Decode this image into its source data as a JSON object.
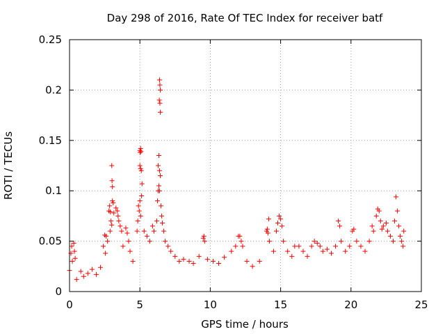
{
  "chart_data": {
    "type": "scatter",
    "title": "Day 298 of 2016, Rate Of TEC Index for receiver batf",
    "xlabel": "GPS time / hours",
    "ylabel": "ROTI / TECUs",
    "xlim": [
      0,
      25
    ],
    "ylim": [
      0,
      0.25
    ],
    "x_ticks": [
      0,
      5,
      10,
      15,
      20,
      25
    ],
    "x_tick_labels": [
      "0",
      "5",
      "10",
      "15",
      "20",
      "25"
    ],
    "y_ticks": [
      0,
      0.05,
      0.1,
      0.15,
      0.2,
      0.25
    ],
    "y_tick_labels": [
      "0",
      "0.05",
      "0.1",
      "0.15",
      "0.2",
      "0.25"
    ],
    "grid": true,
    "marker": "+",
    "color": "#ff0000",
    "series": [
      {
        "name": "ROTI",
        "points": [
          [
            0.0,
            0.021
          ],
          [
            0.1,
            0.038
          ],
          [
            0.15,
            0.045
          ],
          [
            0.2,
            0.03
          ],
          [
            0.3,
            0.048
          ],
          [
            0.35,
            0.04
          ],
          [
            0.4,
            0.033
          ],
          [
            0.5,
            0.012
          ],
          [
            0.8,
            0.02
          ],
          [
            1.0,
            0.015
          ],
          [
            1.3,
            0.018
          ],
          [
            1.6,
            0.022
          ],
          [
            1.9,
            0.017
          ],
          [
            2.2,
            0.024
          ],
          [
            2.5,
            0.056
          ],
          [
            2.6,
            0.055
          ],
          [
            2.7,
            0.05
          ],
          [
            2.4,
            0.045
          ],
          [
            2.55,
            0.038
          ],
          [
            2.8,
            0.08
          ],
          [
            2.85,
            0.085
          ],
          [
            2.9,
            0.079
          ],
          [
            2.95,
            0.07
          ],
          [
            3.0,
            0.066
          ],
          [
            2.88,
            0.06
          ],
          [
            3.0,
            0.125
          ],
          [
            3.02,
            0.11
          ],
          [
            3.05,
            0.104
          ],
          [
            3.05,
            0.09
          ],
          [
            3.1,
            0.088
          ],
          [
            3.15,
            0.078
          ],
          [
            3.3,
            0.083
          ],
          [
            3.4,
            0.08
          ],
          [
            3.45,
            0.075
          ],
          [
            3.5,
            0.07
          ],
          [
            3.6,
            0.065
          ],
          [
            3.7,
            0.06
          ],
          [
            3.8,
            0.045
          ],
          [
            4.0,
            0.063
          ],
          [
            4.1,
            0.058
          ],
          [
            4.2,
            0.05
          ],
          [
            4.3,
            0.04
          ],
          [
            4.5,
            0.03
          ],
          [
            4.8,
            0.06
          ],
          [
            4.85,
            0.07
          ],
          [
            4.9,
            0.085
          ],
          [
            4.95,
            0.08
          ],
          [
            5.0,
            0.09
          ],
          [
            5.05,
            0.075
          ],
          [
            5.0,
            0.14
          ],
          [
            5.02,
            0.138
          ],
          [
            5.05,
            0.142
          ],
          [
            5.08,
            0.139
          ],
          [
            5.0,
            0.125
          ],
          [
            5.05,
            0.122
          ],
          [
            5.1,
            0.12
          ],
          [
            5.15,
            0.107
          ],
          [
            5.12,
            0.095
          ],
          [
            5.3,
            0.06
          ],
          [
            5.5,
            0.055
          ],
          [
            5.7,
            0.05
          ],
          [
            5.9,
            0.065
          ],
          [
            6.0,
            0.06
          ],
          [
            6.2,
            0.07
          ],
          [
            6.25,
            0.09
          ],
          [
            6.3,
            0.1
          ],
          [
            6.35,
            0.105
          ],
          [
            6.4,
            0.1
          ],
          [
            6.3,
            0.125
          ],
          [
            6.35,
            0.135
          ],
          [
            6.4,
            0.12
          ],
          [
            6.45,
            0.115
          ],
          [
            6.4,
            0.21
          ],
          [
            6.42,
            0.205
          ],
          [
            6.45,
            0.2
          ],
          [
            6.38,
            0.19
          ],
          [
            6.42,
            0.187
          ],
          [
            6.45,
            0.178
          ],
          [
            6.5,
            0.085
          ],
          [
            6.55,
            0.075
          ],
          [
            6.6,
            0.068
          ],
          [
            6.7,
            0.06
          ],
          [
            6.8,
            0.05
          ],
          [
            7.0,
            0.045
          ],
          [
            7.2,
            0.04
          ],
          [
            7.5,
            0.035
          ],
          [
            7.8,
            0.03
          ],
          [
            8.1,
            0.032
          ],
          [
            8.5,
            0.03
          ],
          [
            8.8,
            0.028
          ],
          [
            9.2,
            0.035
          ],
          [
            9.5,
            0.053
          ],
          [
            9.55,
            0.055
          ],
          [
            9.6,
            0.05
          ],
          [
            9.8,
            0.032
          ],
          [
            10.2,
            0.03
          ],
          [
            10.6,
            0.028
          ],
          [
            11.0,
            0.034
          ],
          [
            11.5,
            0.04
          ],
          [
            11.8,
            0.045
          ],
          [
            12.0,
            0.055
          ],
          [
            12.1,
            0.055
          ],
          [
            12.2,
            0.05
          ],
          [
            12.3,
            0.045
          ],
          [
            12.6,
            0.03
          ],
          [
            13.0,
            0.025
          ],
          [
            13.5,
            0.03
          ],
          [
            14.0,
            0.06
          ],
          [
            14.05,
            0.062
          ],
          [
            14.1,
            0.058
          ],
          [
            14.15,
            0.072
          ],
          [
            14.2,
            0.05
          ],
          [
            14.5,
            0.04
          ],
          [
            14.7,
            0.06
          ],
          [
            14.8,
            0.068
          ],
          [
            14.9,
            0.075
          ],
          [
            15.0,
            0.072
          ],
          [
            15.1,
            0.065
          ],
          [
            15.2,
            0.05
          ],
          [
            15.5,
            0.04
          ],
          [
            15.8,
            0.035
          ],
          [
            16.0,
            0.045
          ],
          [
            16.3,
            0.045
          ],
          [
            16.6,
            0.04
          ],
          [
            16.9,
            0.035
          ],
          [
            17.2,
            0.045
          ],
          [
            17.4,
            0.05
          ],
          [
            17.6,
            0.048
          ],
          [
            17.8,
            0.045
          ],
          [
            18.0,
            0.04
          ],
          [
            18.3,
            0.042
          ],
          [
            18.6,
            0.038
          ],
          [
            18.9,
            0.045
          ],
          [
            19.1,
            0.07
          ],
          [
            19.2,
            0.065
          ],
          [
            19.3,
            0.05
          ],
          [
            19.6,
            0.04
          ],
          [
            19.9,
            0.045
          ],
          [
            20.1,
            0.06
          ],
          [
            20.2,
            0.062
          ],
          [
            20.4,
            0.05
          ],
          [
            20.7,
            0.045
          ],
          [
            21.0,
            0.04
          ],
          [
            21.3,
            0.05
          ],
          [
            21.5,
            0.065
          ],
          [
            21.6,
            0.06
          ],
          [
            21.8,
            0.075
          ],
          [
            21.9,
            0.082
          ],
          [
            22.0,
            0.08
          ],
          [
            22.1,
            0.07
          ],
          [
            22.2,
            0.062
          ],
          [
            22.3,
            0.065
          ],
          [
            22.5,
            0.068
          ],
          [
            22.6,
            0.06
          ],
          [
            22.8,
            0.055
          ],
          [
            23.0,
            0.05
          ],
          [
            23.1,
            0.07
          ],
          [
            23.2,
            0.094
          ],
          [
            23.3,
            0.08
          ],
          [
            23.4,
            0.065
          ],
          [
            23.5,
            0.055
          ],
          [
            23.6,
            0.05
          ],
          [
            23.7,
            0.045
          ],
          [
            23.75,
            0.06
          ]
        ]
      }
    ]
  }
}
